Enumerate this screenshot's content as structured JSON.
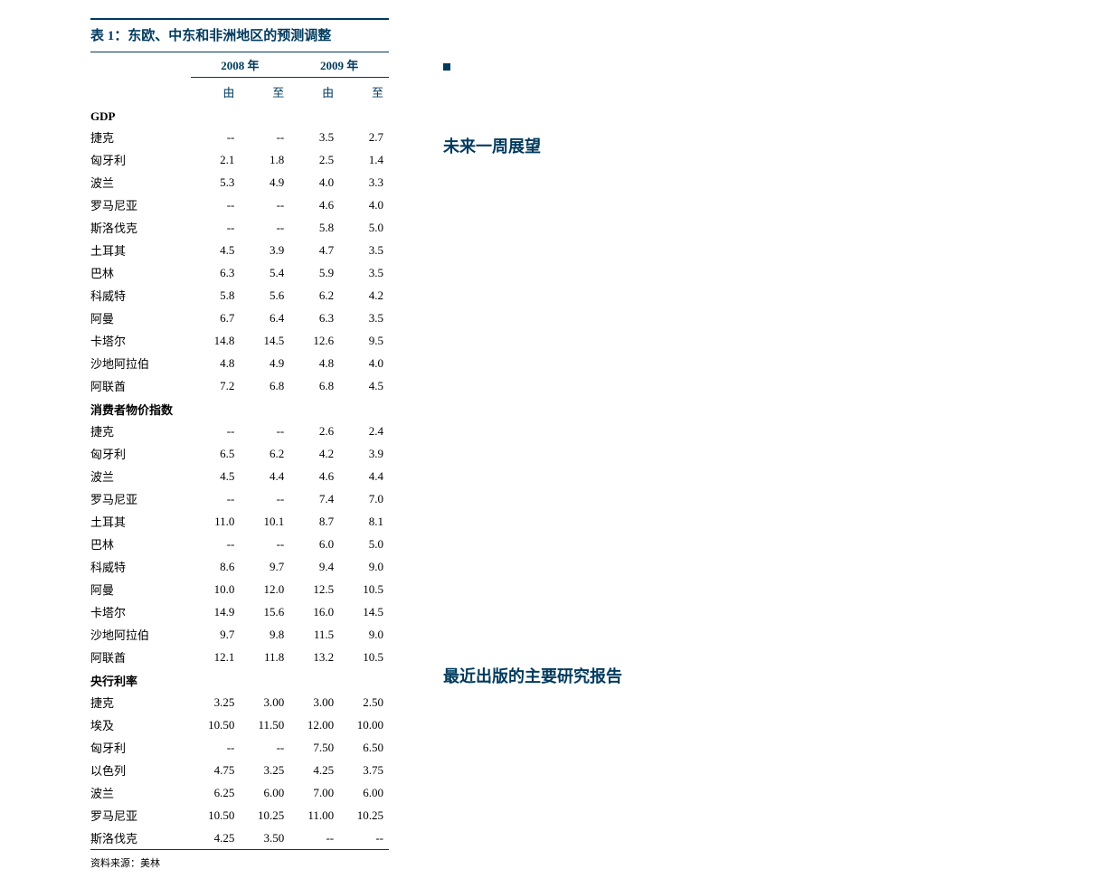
{
  "table": {
    "title": "表 1：东欧、中东和非洲地区的预测调整",
    "title_color": "#003a5d",
    "border_color": "#003a5d",
    "year_headers": [
      "2008 年",
      "2009 年"
    ],
    "sub_headers": [
      "由",
      "至",
      "由",
      "至"
    ],
    "sections": [
      {
        "name": "GDP",
        "rows": [
          {
            "country": "捷克",
            "v": [
              "--",
              "--",
              "3.5",
              "2.7"
            ]
          },
          {
            "country": "匈牙利",
            "v": [
              "2.1",
              "1.8",
              "2.5",
              "1.4"
            ]
          },
          {
            "country": "波兰",
            "v": [
              "5.3",
              "4.9",
              "4.0",
              "3.3"
            ]
          },
          {
            "country": "罗马尼亚",
            "v": [
              "--",
              "--",
              "4.6",
              "4.0"
            ]
          },
          {
            "country": "斯洛伐克",
            "v": [
              "--",
              "--",
              "5.8",
              "5.0"
            ]
          },
          {
            "country": "土耳其",
            "v": [
              "4.5",
              "3.9",
              "4.7",
              "3.5"
            ]
          },
          {
            "country": "巴林",
            "v": [
              "6.3",
              "5.4",
              "5.9",
              "3.5"
            ]
          },
          {
            "country": "科威特",
            "v": [
              "5.8",
              "5.6",
              "6.2",
              "4.2"
            ]
          },
          {
            "country": "阿曼",
            "v": [
              "6.7",
              "6.4",
              "6.3",
              "3.5"
            ]
          },
          {
            "country": "卡塔尔",
            "v": [
              "14.8",
              "14.5",
              "12.6",
              "9.5"
            ]
          },
          {
            "country": "沙地阿拉伯",
            "v": [
              "4.8",
              "4.9",
              "4.8",
              "4.0"
            ]
          },
          {
            "country": "阿联酋",
            "v": [
              "7.2",
              "6.8",
              "6.8",
              "4.5"
            ]
          }
        ]
      },
      {
        "name": "消费者物价指数",
        "rows": [
          {
            "country": "捷克",
            "v": [
              "--",
              "--",
              "2.6",
              "2.4"
            ]
          },
          {
            "country": "匈牙利",
            "v": [
              "6.5",
              "6.2",
              "4.2",
              "3.9"
            ]
          },
          {
            "country": "波兰",
            "v": [
              "4.5",
              "4.4",
              "4.6",
              "4.4"
            ]
          },
          {
            "country": "罗马尼亚",
            "v": [
              "--",
              "--",
              "7.4",
              "7.0"
            ]
          },
          {
            "country": "土耳其",
            "v": [
              "11.0",
              "10.1",
              "8.7",
              "8.1"
            ]
          },
          {
            "country": "巴林",
            "v": [
              "--",
              "--",
              "6.0",
              "5.0"
            ]
          },
          {
            "country": "科威特",
            "v": [
              "8.6",
              "9.7",
              "9.4",
              "9.0"
            ]
          },
          {
            "country": "阿曼",
            "v": [
              "10.0",
              "12.0",
              "12.5",
              "10.5"
            ]
          },
          {
            "country": "卡塔尔",
            "v": [
              "14.9",
              "15.6",
              "16.0",
              "14.5"
            ]
          },
          {
            "country": "沙地阿拉伯",
            "v": [
              "9.7",
              "9.8",
              "11.5",
              "9.0"
            ]
          },
          {
            "country": "阿联酋",
            "v": [
              "12.1",
              "11.8",
              "13.2",
              "10.5"
            ]
          }
        ]
      },
      {
        "name": "央行利率",
        "rows": [
          {
            "country": "捷克",
            "v": [
              "3.25",
              "3.00",
              "3.00",
              "2.50"
            ]
          },
          {
            "country": "埃及",
            "v": [
              "10.50",
              "11.50",
              "12.00",
              "10.00"
            ]
          },
          {
            "country": "匈牙利",
            "v": [
              "--",
              "--",
              "7.50",
              "6.50"
            ]
          },
          {
            "country": "以色列",
            "v": [
              "4.75",
              "3.25",
              "4.25",
              "3.75"
            ]
          },
          {
            "country": "波兰",
            "v": [
              "6.25",
              "6.00",
              "7.00",
              "6.00"
            ]
          },
          {
            "country": "罗马尼亚",
            "v": [
              "10.50",
              "10.25",
              "11.00",
              "10.25"
            ]
          },
          {
            "country": "斯洛伐克",
            "v": [
              "4.25",
              "3.50",
              "--",
              "--"
            ]
          }
        ]
      }
    ],
    "source": "资料来源：美林"
  },
  "right": {
    "heading1": "未来一周展望",
    "heading2": "最近出版的主要研究报告",
    "heading_color": "#003a5d"
  },
  "layout": {
    "background_color": "#ffffff",
    "text_color": "#000000",
    "font_family": "SimSun"
  }
}
